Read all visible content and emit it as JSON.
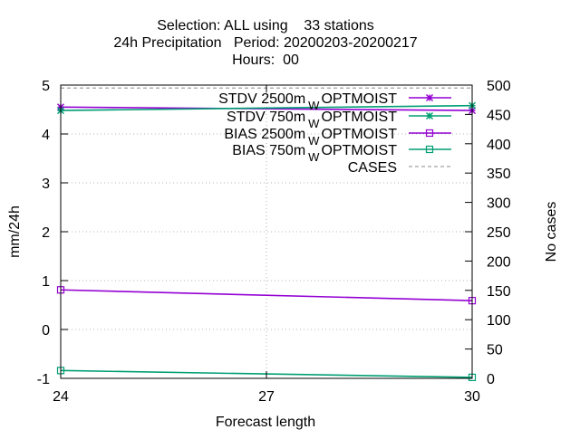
{
  "chart_data": {
    "type": "line",
    "title_lines": [
      "Selection: ALL using    33 stations",
      "24h Precipitation   Period: 20200203-20200217",
      "Hours:  00"
    ],
    "xlabel": "Forecast length",
    "ylabel": "mm/24h",
    "y2label": "No cases",
    "xlim": [
      24,
      30
    ],
    "ylim": [
      -1,
      5
    ],
    "y2lim": [
      0,
      500
    ],
    "xticks": [
      "24",
      "27",
      "30"
    ],
    "yticks": [
      "-1",
      "0",
      "1",
      "2",
      "3",
      "4",
      "5"
    ],
    "y2ticks": [
      "0",
      "50",
      "100",
      "150",
      "200",
      "250",
      "300",
      "350",
      "400",
      "450",
      "500"
    ],
    "grid": true,
    "legend_position": "top-right",
    "series": [
      {
        "legend_label": "STDV 2500m",
        "legend_sub": "W",
        "legend_suffix": "OPTMOIST",
        "color": "#9400d3",
        "marker": "star",
        "dash": false,
        "axis": "y",
        "x": [
          24,
          30
        ],
        "y": [
          4.55,
          4.48
        ]
      },
      {
        "legend_label": "STDV 750m",
        "legend_sub": "W",
        "legend_suffix": "OPTMOIST",
        "color": "#009e73",
        "marker": "star",
        "dash": false,
        "axis": "y",
        "x": [
          24,
          30
        ],
        "y": [
          4.48,
          4.58
        ]
      },
      {
        "legend_label": "BIAS 2500m",
        "legend_sub": "W",
        "legend_suffix": "OPTMOIST",
        "color": "#9400d3",
        "marker": "square",
        "dash": false,
        "axis": "y",
        "x": [
          24,
          30
        ],
        "y": [
          0.81,
          0.59
        ]
      },
      {
        "legend_label": "BIAS 750m",
        "legend_sub": "W",
        "legend_suffix": "OPTMOIST",
        "color": "#009e73",
        "marker": "square",
        "dash": false,
        "axis": "y",
        "x": [
          24,
          30
        ],
        "y": [
          -0.84,
          -0.98
        ]
      },
      {
        "legend_label": "CASES",
        "legend_sub": "",
        "legend_suffix": "",
        "color": "#a0a0a0",
        "marker": "none",
        "dash": true,
        "axis": "y2",
        "x": [
          24,
          30
        ],
        "y": [
          495,
          495
        ]
      }
    ]
  }
}
